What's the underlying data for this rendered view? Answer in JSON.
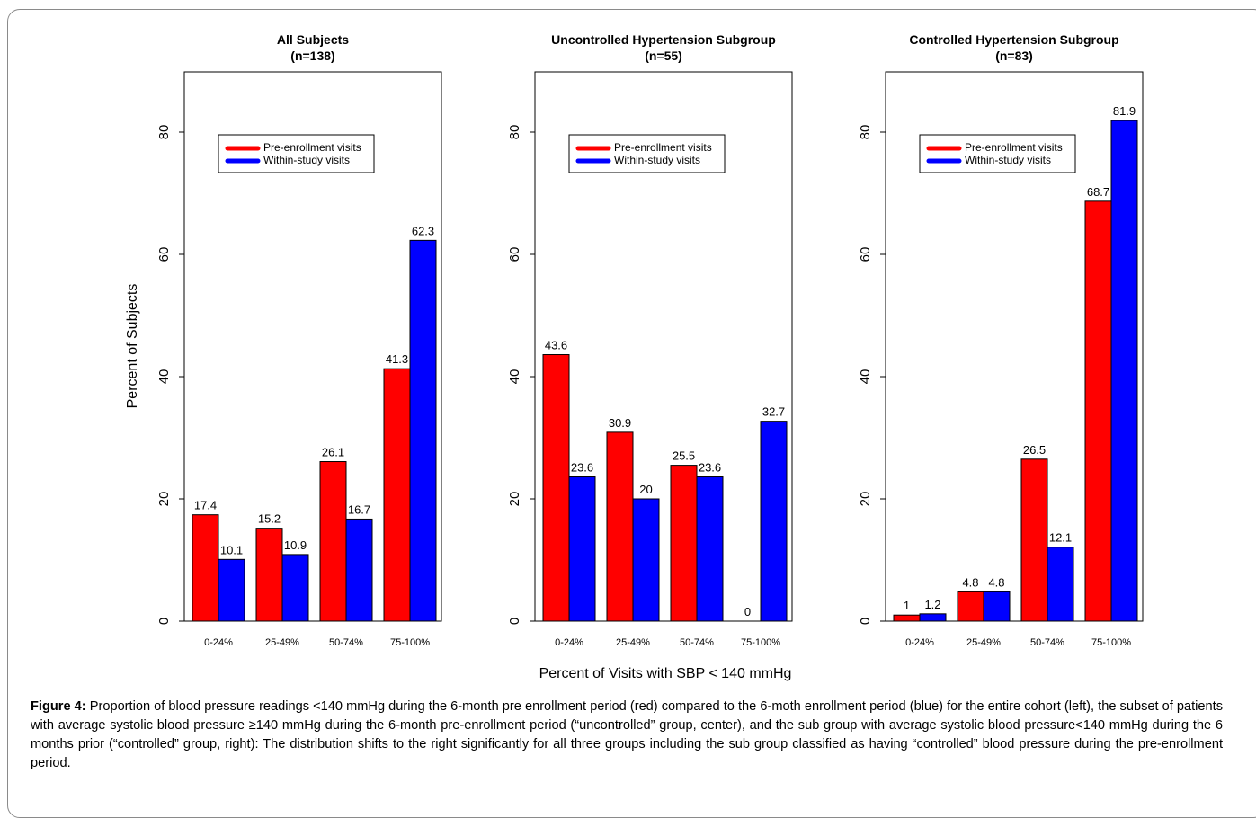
{
  "chart_data": [
    {
      "type": "bar",
      "title": "All Subjects",
      "subtitle": "(n=138)",
      "ylabel": "Percent of Subjects",
      "xlabel": "Percent of Visits with SBP < 140 mmHg",
      "categories": [
        "0-24%",
        "25-49%",
        "50-74%",
        "75-100%"
      ],
      "ylim": [
        0,
        90
      ],
      "yticks": [
        "0",
        "20",
        "40",
        "60",
        "80"
      ],
      "legend_position": "top-center",
      "grid": false,
      "series": [
        {
          "name": "Pre-enrollment visits",
          "color": "#ff0000",
          "values": [
            17.4,
            15.2,
            26.1,
            41.3
          ],
          "labels": [
            "17.4",
            "15.2",
            "26.1",
            "41.3"
          ]
        },
        {
          "name": "Within-study visits",
          "color": "#0000ff",
          "values": [
            10.1,
            10.9,
            16.7,
            62.3
          ],
          "labels": [
            "10.1",
            "10.9",
            "16.7",
            "62.3"
          ]
        }
      ]
    },
    {
      "type": "bar",
      "title": "Uncontrolled Hypertension Subgroup",
      "subtitle": "(n=55)",
      "ylabel": "",
      "xlabel": "Percent of Visits with SBP < 140 mmHg",
      "categories": [
        "0-24%",
        "25-49%",
        "50-74%",
        "75-100%"
      ],
      "ylim": [
        0,
        90
      ],
      "yticks": [
        "0",
        "20",
        "40",
        "60",
        "80"
      ],
      "legend_position": "top-center",
      "grid": false,
      "series": [
        {
          "name": "Pre-enrollment visits",
          "color": "#ff0000",
          "values": [
            43.6,
            30.9,
            25.5,
            0
          ],
          "labels": [
            "43.6",
            "30.9",
            "25.5",
            "0"
          ]
        },
        {
          "name": "Within-study visits",
          "color": "#0000ff",
          "values": [
            23.6,
            20,
            23.6,
            32.7
          ],
          "labels": [
            "23.6",
            "20",
            "23.6",
            "32.7"
          ]
        }
      ]
    },
    {
      "type": "bar",
      "title": "Controlled Hypertension Subgroup",
      "subtitle": "(n=83)",
      "ylabel": "",
      "xlabel": "Percent of Visits with SBP < 140 mmHg",
      "categories": [
        "0-24%",
        "25-49%",
        "50-74%",
        "75-100%"
      ],
      "ylim": [
        0,
        90
      ],
      "yticks": [
        "0",
        "20",
        "40",
        "60",
        "80"
      ],
      "legend_position": "top-center",
      "grid": false,
      "series": [
        {
          "name": "Pre-enrollment visits",
          "color": "#ff0000",
          "values": [
            1,
            4.8,
            26.5,
            68.7
          ],
          "labels": [
            "1",
            "4.8",
            "26.5",
            "68.7"
          ]
        },
        {
          "name": "Within-study visits",
          "color": "#0000ff",
          "values": [
            1.2,
            4.8,
            12.1,
            81.9
          ],
          "labels": [
            "1.2",
            "4.8",
            "12.1",
            "81.9"
          ]
        }
      ]
    }
  ],
  "shared_xlabel": "Percent of Visits with SBP < 140 mmHg",
  "caption": {
    "label": "Figure 4:",
    "text": " Proportion of blood pressure readings <140 mmHg during the 6-month pre enrollment period (red) compared to the 6-moth enrollment period (blue) for the entire cohort (left), the subset of patients with average systolic blood pressure ≥140 mmHg during the 6-month pre-enrollment period (“uncontrolled” group, center), and the sub group with average systolic blood pressure<140 mmHg during the 6 months prior (“controlled” group, right): The distribution shifts to the right significantly for all three groups including the sub group classified as having “controlled” blood pressure during the pre-enrollment period."
  }
}
